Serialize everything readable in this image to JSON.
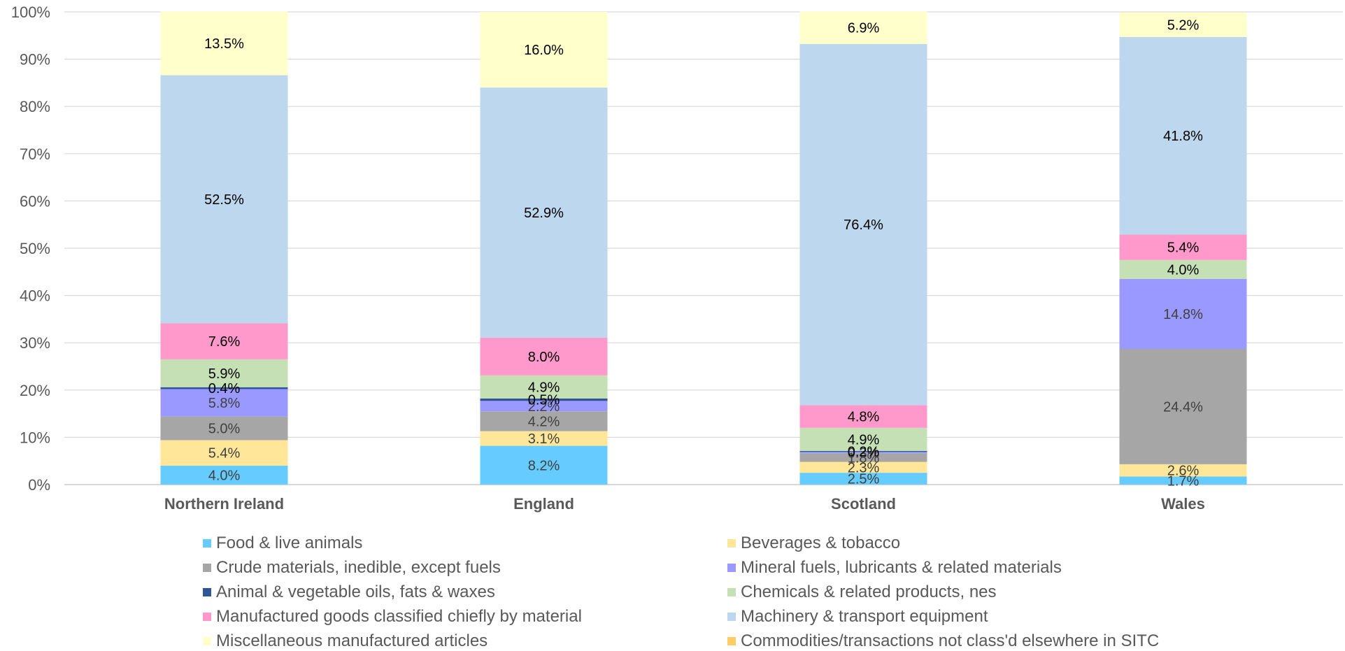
{
  "chart_data": {
    "type": "bar",
    "stacked": true,
    "percent_stacked": true,
    "categories": [
      "Northern Ireland",
      "England",
      "Scotland",
      "Wales"
    ],
    "y_ticks": [
      "0%",
      "10%",
      "20%",
      "30%",
      "40%",
      "50%",
      "60%",
      "70%",
      "80%",
      "90%",
      "100%"
    ],
    "ylim": [
      0,
      100
    ],
    "grid": true,
    "legend_position": "bottom",
    "series": [
      {
        "name": "Food & live animals",
        "color": "#66CCFF",
        "label_color": "#404040",
        "values": [
          4.0,
          8.2,
          2.5,
          1.7
        ],
        "labels": [
          "4.0%",
          "8.2%",
          "2.5%",
          "1.7%"
        ]
      },
      {
        "name": "Beverages & tobacco",
        "color": "#FFE699",
        "label_color": "#404040",
        "values": [
          5.4,
          3.1,
          2.3,
          2.6
        ],
        "labels": [
          "5.4%",
          "3.1%",
          "2.3%",
          "2.6%"
        ]
      },
      {
        "name": "Crude materials, inedible, except fuels",
        "color": "#A6A6A6",
        "label_color": "#404040",
        "values": [
          5.0,
          4.2,
          1.8,
          24.4
        ],
        "labels": [
          "5.0%",
          "4.2%",
          "1.8%",
          "24.4%"
        ]
      },
      {
        "name": "Mineral fuels, lubricants & related materials",
        "color": "#9999FF",
        "label_color": "#404040",
        "values": [
          5.8,
          2.2,
          0.3,
          14.8
        ],
        "labels": [
          "5.8%",
          "2.2%",
          "0.3%",
          "14.8%"
        ]
      },
      {
        "name": "Animal & vegetable oils, fats & waxes",
        "color": "#2F5597",
        "label_color": "#000000",
        "values": [
          0.4,
          0.5,
          0.2,
          0.0
        ],
        "labels": [
          "0.4%",
          "0.5%",
          "0.2%",
          ""
        ]
      },
      {
        "name": "Chemicals & related products, nes",
        "color": "#C5E0B4",
        "label_color": "#000000",
        "values": [
          5.9,
          4.9,
          4.9,
          4.0
        ],
        "labels": [
          "5.9%",
          "4.9%",
          "4.9%",
          "4.0%"
        ]
      },
      {
        "name": "Manufactured goods classified chiefly by material",
        "color": "#FF99CC",
        "label_color": "#000000",
        "values": [
          7.6,
          8.0,
          4.8,
          5.4
        ],
        "labels": [
          "7.6%",
          "8.0%",
          "4.8%",
          "5.4%"
        ]
      },
      {
        "name": "Machinery & transport equipment",
        "color": "#BDD7EE",
        "label_color": "#000000",
        "values": [
          52.5,
          52.9,
          76.4,
          41.8
        ],
        "labels": [
          "52.5%",
          "52.9%",
          "76.4%",
          "41.8%"
        ]
      },
      {
        "name": "Miscellaneous manufactured articles",
        "color": "#FFFFCC",
        "label_color": "#000000",
        "values": [
          13.5,
          16.0,
          6.9,
          5.2
        ],
        "labels": [
          "13.5%",
          "16.0%",
          "6.9%",
          "5.2%"
        ]
      },
      {
        "name": "Commodities/transactions not class'd elsewhere in SITC",
        "color": "#FFCC66",
        "label_color": "#000000",
        "values": [
          0.0,
          0.0,
          0.0,
          0.0
        ],
        "labels": [
          "",
          "",
          "",
          ""
        ]
      }
    ],
    "colors": {
      "gridline": "#D9D9D9",
      "axis_line": "#BFBFBF",
      "tick_label": "#595959",
      "category_label": "#595959"
    }
  }
}
